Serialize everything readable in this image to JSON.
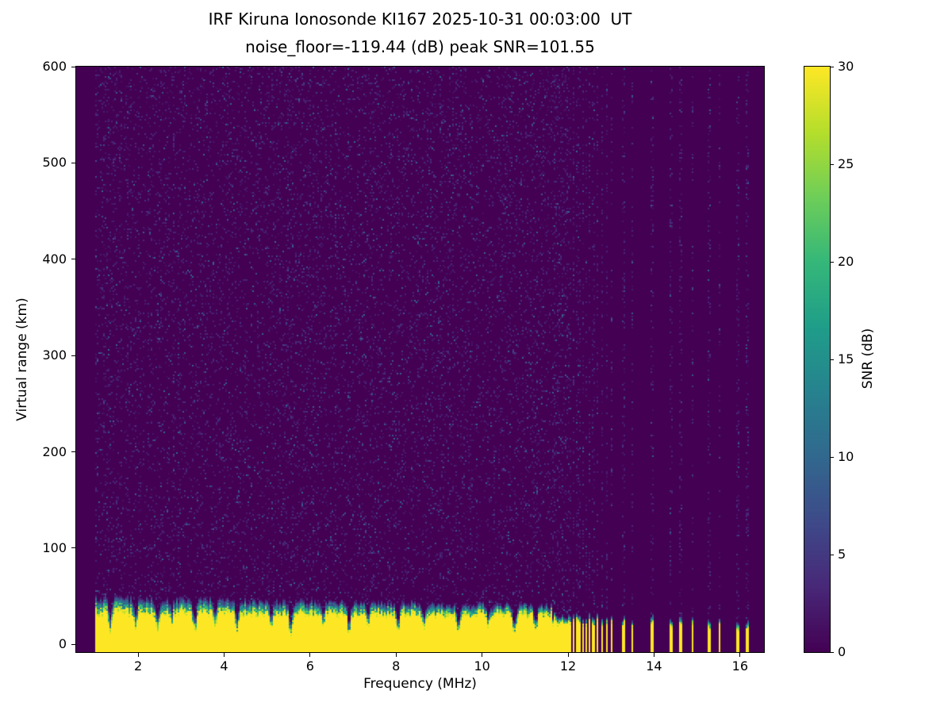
{
  "chart_data": {
    "type": "heatmap",
    "title": "IRF Kiruna Ionosonde KI167 2025-10-31 00:03:00  UT",
    "subtitle": "noise_floor=-119.44 (dB) peak SNR=101.55",
    "xlabel": "Frequency (MHz)",
    "ylabel": "Virtual range (km)",
    "x_range": [
      0.56,
      16.56
    ],
    "y_range": [
      -8,
      600
    ],
    "x_ticks": [
      2,
      4,
      6,
      8,
      10,
      12,
      14,
      16
    ],
    "y_ticks": [
      0,
      100,
      200,
      300,
      400,
      500,
      600
    ],
    "grid": false,
    "colormap": "viridis",
    "background_db": 0,
    "colorbar": {
      "label": "SNR (dB)",
      "range": [
        0,
        30
      ],
      "ticks": [
        0,
        5,
        10,
        15,
        20,
        25,
        30
      ],
      "position": "right"
    },
    "signal": {
      "freq_start_mhz": 1.0,
      "freq_end_mhz": 16.45,
      "dense_sweep_end_mhz": 11.62,
      "ground_return": {
        "snr_db": 30,
        "bottom_km": -8,
        "top_km_at_1mhz": 34,
        "top_slope_km_per_mhz": -0.28,
        "fringe_km_at_1mhz": 15,
        "fringe_slope_km_per_mhz": -0.5,
        "notch_freqs_mhz": [
          1.35,
          1.95,
          2.45,
          2.78,
          3.32,
          3.8,
          4.3,
          5.1,
          5.55,
          6.3,
          6.9,
          7.35,
          8.05,
          8.65,
          9.45,
          10.15,
          10.75,
          11.25
        ],
        "notch_depths_km": [
          18,
          13,
          22,
          11,
          20,
          15
        ],
        "notch_width_mhz": 0.05
      },
      "dense_stripe_zone": {
        "start_mhz": 11.66,
        "end_mhz": 13.12,
        "gap_start_mhz": 0.04,
        "gap_growth": 0.06,
        "half_width_mhz": 0.022
      },
      "sparse_stripes_mhz": [
        13.28,
        13.5,
        13.95,
        14.4,
        14.62,
        14.9,
        15.28,
        15.52,
        15.95,
        16.18
      ],
      "sparse_half_width_mhz": 0.03,
      "stripe_band_top_km": 24,
      "noise_speckle": {
        "probability": 0.12,
        "max_db": 10
      },
      "seed": 167
    },
    "viridis_stops": [
      [
        68,
        1,
        84
      ],
      [
        72,
        40,
        120
      ],
      [
        62,
        74,
        137
      ],
      [
        49,
        104,
        142
      ],
      [
        38,
        130,
        142
      ],
      [
        31,
        158,
        137
      ],
      [
        53,
        183,
        121
      ],
      [
        110,
        206,
        88
      ],
      [
        181,
        222,
        43
      ],
      [
        253,
        231,
        37
      ]
    ]
  }
}
